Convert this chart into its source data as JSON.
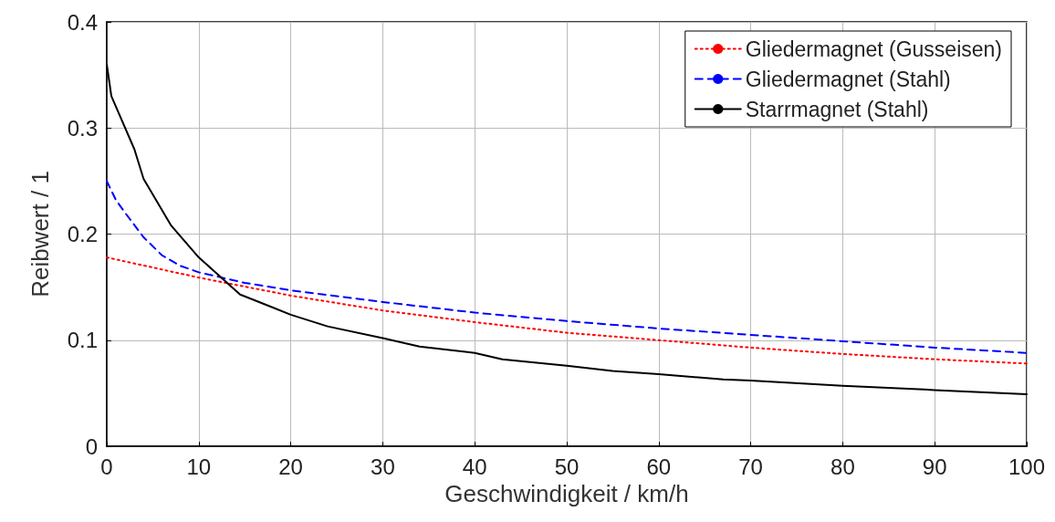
{
  "chart_data": {
    "type": "line",
    "xlabel": "Geschwindigkeit / km/h",
    "ylabel": "Reibwert / 1",
    "xlim": [
      0,
      100
    ],
    "xticks": [
      0,
      10,
      20,
      30,
      40,
      50,
      60,
      70,
      80,
      90,
      100
    ],
    "ylim": [
      0,
      0.4
    ],
    "yticks": [
      0,
      0.1,
      0.2,
      0.3,
      0.4
    ],
    "grid": true,
    "legend": "top right",
    "marker": "none",
    "series": [
      {
        "name": "Gliedermagnet (Gusseisen)",
        "color": "#ff0000",
        "line_style": "dotted",
        "x": [
          0,
          10,
          20,
          30,
          40,
          50,
          60,
          70,
          80,
          90,
          100
        ],
        "values": [
          0.178,
          0.159,
          0.142,
          0.128,
          0.117,
          0.107,
          0.1,
          0.093,
          0.087,
          0.082,
          0.078
        ]
      },
      {
        "name": "Gliedermagnet (Stahl)",
        "color": "#0000ff",
        "line_style": "dashed",
        "x": [
          0,
          1,
          2,
          4,
          6,
          8,
          10,
          15,
          20,
          30,
          40,
          50,
          60,
          70,
          80,
          90,
          100
        ],
        "values": [
          0.25,
          0.232,
          0.22,
          0.197,
          0.18,
          0.17,
          0.164,
          0.154,
          0.147,
          0.136,
          0.126,
          0.118,
          0.111,
          0.105,
          0.099,
          0.093,
          0.088
        ]
      },
      {
        "name": "Starrmagnet (Stahl)",
        "color": "#000000",
        "line_style": "solid",
        "x": [
          0,
          0.5,
          3,
          4,
          7,
          10,
          14.5,
          18,
          20,
          24,
          30,
          34,
          40,
          43,
          50,
          55,
          60,
          67,
          70,
          80,
          90,
          100
        ],
        "values": [
          0.36,
          0.33,
          0.28,
          0.252,
          0.208,
          0.178,
          0.143,
          0.131,
          0.124,
          0.113,
          0.102,
          0.094,
          0.088,
          0.082,
          0.076,
          0.071,
          0.068,
          0.063,
          0.062,
          0.057,
          0.053,
          0.049
        ]
      }
    ]
  }
}
